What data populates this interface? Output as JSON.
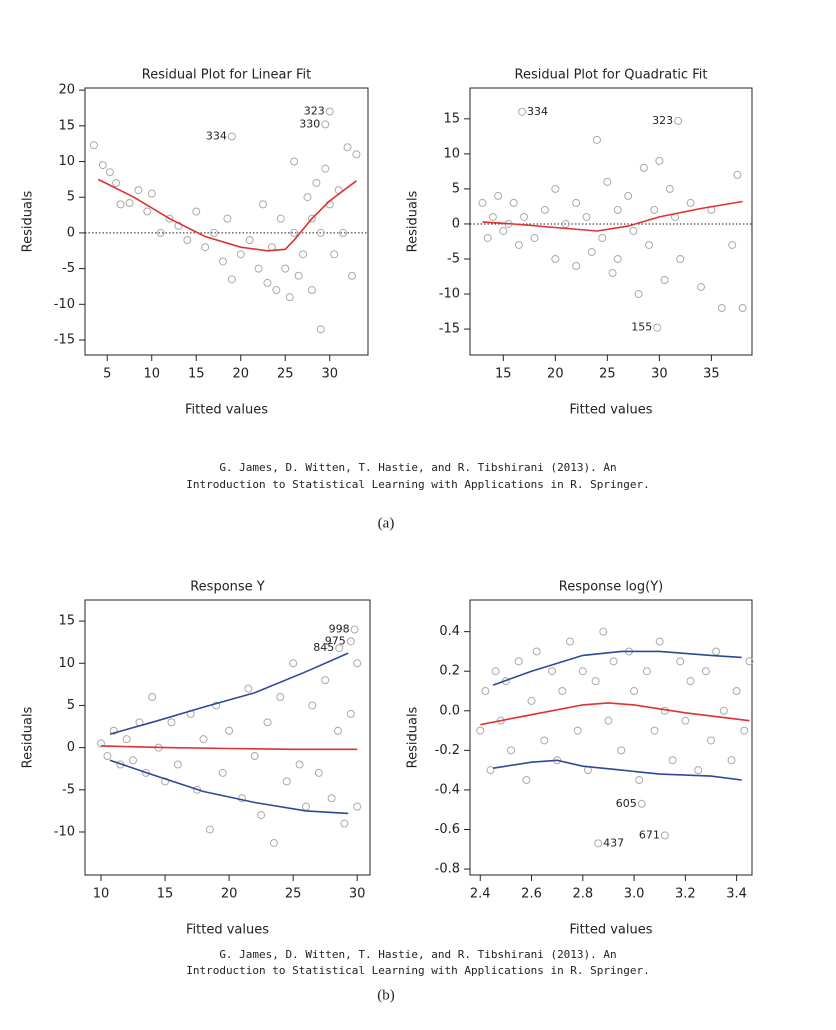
{
  "chart_data": [
    {
      "type": "scatter",
      "title": "Residual Plot for Linear Fit",
      "x_label": "Fitted values",
      "y_label": "Residuals",
      "xlim": [
        2.5,
        34.3
      ],
      "ylim": [
        -17.1,
        20.3
      ],
      "xticks": [
        5,
        10,
        15,
        20,
        25,
        30
      ],
      "yticks": [
        -15,
        -10,
        -5,
        0,
        5,
        10,
        15,
        20
      ],
      "hline": 0,
      "series": [
        {
          "style": "points",
          "color": "#aaaaaa",
          "x": [
            3.5,
            4.5,
            5.3,
            6,
            6.5,
            7.5,
            8.5,
            9.5,
            10,
            11,
            12,
            13,
            14,
            15,
            16,
            17,
            18,
            18.5,
            19,
            20,
            21,
            22,
            22.5,
            23,
            23.5,
            24,
            24.5,
            25,
            25.5,
            26,
            26,
            26.5,
            27,
            27.5,
            28,
            28,
            28.5,
            29,
            29,
            29.5,
            30,
            30.5,
            31,
            31.5,
            32,
            32.5,
            33
          ],
          "values": [
            12.3,
            9.5,
            8.5,
            7,
            4,
            4.2,
            6,
            3,
            5.5,
            0,
            2,
            1,
            -1,
            3,
            -2,
            0,
            -4,
            2,
            -6.5,
            -3,
            -1,
            -5,
            4,
            -7,
            -2,
            -8,
            2,
            -5,
            -9,
            0,
            10,
            -6,
            -3,
            5,
            -8,
            2,
            7,
            -13.5,
            0,
            9,
            4,
            -3,
            6,
            0,
            12,
            -6,
            11
          ]
        },
        {
          "style": "line",
          "color": "#e03030",
          "x": [
            4,
            8,
            12,
            16,
            20,
            23,
            25,
            26,
            28,
            30,
            33
          ],
          "values": [
            7.5,
            5,
            2,
            -0.5,
            -2,
            -2.5,
            -2.3,
            -1,
            2,
            4.5,
            7.3
          ]
        }
      ],
      "annotations": [
        {
          "label": "334",
          "x": 19,
          "y": 13.5
        },
        {
          "label": "323",
          "x": 30,
          "y": 17
        },
        {
          "label": "330",
          "x": 29.5,
          "y": 15.2
        }
      ]
    },
    {
      "type": "scatter",
      "title": "Residual Plot for Quadratic Fit",
      "x_label": "Fitted values",
      "y_label": "Residuals",
      "xlim": [
        11.8,
        38.9
      ],
      "ylim": [
        -18.7,
        19.4
      ],
      "xticks": [
        15,
        20,
        25,
        30,
        35
      ],
      "yticks": [
        -15,
        -10,
        -5,
        0,
        5,
        10,
        15
      ],
      "hline": 0,
      "series": [
        {
          "style": "points",
          "color": "#aaaaaa",
          "x": [
            13,
            13.5,
            14,
            14.5,
            15,
            15.5,
            16,
            16.5,
            17,
            18,
            19,
            20,
            20,
            21,
            22,
            22,
            23,
            23.5,
            24,
            24.5,
            25,
            25.5,
            26,
            26,
            27,
            27.5,
            28,
            28.5,
            29,
            29.5,
            30,
            30.5,
            31,
            31.5,
            32,
            33,
            34,
            35,
            36,
            37,
            37.5,
            38
          ],
          "values": [
            3,
            -2,
            1,
            4,
            -1,
            0,
            3,
            -3,
            1,
            -2,
            2,
            5,
            -5,
            0,
            3,
            -6,
            1,
            -4,
            12,
            -2,
            6,
            -7,
            2,
            -5,
            4,
            -1,
            -10,
            8,
            -3,
            2,
            9,
            -8,
            5,
            1,
            -5,
            3,
            -9,
            2,
            -12,
            -3,
            7,
            -12
          ]
        },
        {
          "style": "line",
          "color": "#e03030",
          "x": [
            13,
            16,
            20,
            24,
            27,
            30,
            34,
            38
          ],
          "values": [
            0.3,
            0,
            -0.5,
            -1,
            -0.3,
            1,
            2.2,
            3.2
          ]
        }
      ],
      "annotations": [
        {
          "label": "334",
          "x": 16.8,
          "y": 16
        },
        {
          "label": "323",
          "x": 31.8,
          "y": 14.7
        },
        {
          "label": "155",
          "x": 29.8,
          "y": -14.8
        }
      ]
    },
    {
      "type": "scatter",
      "title": "Response Y",
      "x_label": "Fitted values",
      "y_label": "Residuals",
      "xlim": [
        8.75,
        31
      ],
      "ylim": [
        -15.1,
        17.5
      ],
      "xticks": [
        10,
        15,
        20,
        25,
        30
      ],
      "yticks": [
        -10,
        -5,
        0,
        5,
        10,
        15
      ],
      "series": [
        {
          "style": "points",
          "color": "#aaaaaa",
          "x": [
            10,
            10.5,
            11,
            11.5,
            12,
            12.5,
            13,
            13.5,
            14,
            14.5,
            15,
            15.5,
            16,
            17,
            17.5,
            18,
            18.5,
            19,
            19.5,
            20,
            21,
            21.5,
            22,
            22.5,
            23,
            23.5,
            24,
            24.5,
            25,
            25.5,
            26,
            26.5,
            27,
            27.5,
            28,
            28.5,
            29,
            29.5,
            30,
            30
          ],
          "values": [
            0.5,
            -1,
            2,
            -2,
            1,
            -1.5,
            3,
            -3,
            6,
            0,
            -4,
            3,
            -2,
            4,
            -5,
            1,
            -9.7,
            5,
            -3,
            2,
            -6,
            7,
            -1,
            -8,
            3,
            -11.3,
            6,
            -4,
            10,
            -2,
            -7,
            5,
            -3,
            8,
            -6,
            2,
            -9,
            4,
            -7,
            10
          ]
        },
        {
          "style": "line",
          "color": "#e03030",
          "x": [
            10,
            15,
            20,
            25,
            30
          ],
          "values": [
            0.2,
            0,
            -0.1,
            -0.2,
            -0.2
          ]
        },
        {
          "style": "line",
          "color": "#2a4a9a",
          "x": [
            10.7,
            14,
            18,
            22,
            26,
            29.3
          ],
          "values": [
            1.6,
            3,
            4.8,
            6.5,
            9,
            11.2
          ]
        },
        {
          "style": "line",
          "color": "#2a4a9a",
          "x": [
            10.7,
            14,
            18,
            22,
            26,
            29.3
          ],
          "values": [
            -1.5,
            -3.2,
            -5.2,
            -6.5,
            -7.5,
            -7.8
          ]
        }
      ],
      "annotations": [
        {
          "label": "998",
          "x": 29.8,
          "y": 14
        },
        {
          "label": "975",
          "x": 29.5,
          "y": 12.6
        },
        {
          "label": "845",
          "x": 28.6,
          "y": 11.8
        }
      ]
    },
    {
      "type": "scatter",
      "title": "Response log(Y)",
      "x_label": "Fitted values",
      "y_label": "Residuals",
      "xlim": [
        2.36,
        3.46
      ],
      "ylim": [
        -0.83,
        0.56
      ],
      "xticks": [
        2.4,
        2.6,
        2.8,
        {
          "value": 3,
          "label": "3.0"
        },
        3.2,
        3.4
      ],
      "yticks": [
        -0.8,
        -0.6,
        -0.4,
        -0.2,
        {
          "value": 0,
          "label": "0.0"
        },
        0.2,
        0.4
      ],
      "series": [
        {
          "style": "points",
          "color": "#aaaaaa",
          "x": [
            2.4,
            2.42,
            2.44,
            2.46,
            2.48,
            2.5,
            2.52,
            2.55,
            2.58,
            2.6,
            2.62,
            2.65,
            2.68,
            2.7,
            2.72,
            2.75,
            2.78,
            2.8,
            2.82,
            2.85,
            2.88,
            2.9,
            2.92,
            2.95,
            2.98,
            3.0,
            3.02,
            3.05,
            3.08,
            3.1,
            3.12,
            3.15,
            3.18,
            3.2,
            3.22,
            3.25,
            3.28,
            3.3,
            3.32,
            3.35,
            3.38,
            3.4,
            3.43,
            3.45
          ],
          "values": [
            -0.1,
            0.1,
            -0.3,
            0.2,
            -0.05,
            0.15,
            -0.2,
            0.25,
            -0.35,
            0.05,
            0.3,
            -0.15,
            0.2,
            -0.25,
            0.1,
            0.35,
            -0.1,
            0.2,
            -0.3,
            0.15,
            0.4,
            -0.05,
            0.25,
            -0.2,
            0.3,
            0.1,
            -0.35,
            0.2,
            -0.1,
            0.35,
            0,
            -0.25,
            0.25,
            -0.05,
            0.15,
            -0.3,
            0.2,
            -0.15,
            0.3,
            0,
            -0.25,
            0.1,
            -0.1,
            0.25
          ]
        },
        {
          "style": "line",
          "color": "#e03030",
          "x": [
            2.4,
            2.6,
            2.8,
            2.9,
            3.0,
            3.2,
            3.45
          ],
          "values": [
            -0.07,
            -0.02,
            0.03,
            0.04,
            0.03,
            -0.01,
            -0.05
          ]
        },
        {
          "style": "line",
          "color": "#2a4a9a",
          "x": [
            2.45,
            2.6,
            2.8,
            2.95,
            3.1,
            3.3,
            3.42
          ],
          "values": [
            0.13,
            0.2,
            0.28,
            0.3,
            0.3,
            0.28,
            0.27
          ]
        },
        {
          "style": "line",
          "color": "#2a4a9a",
          "x": [
            2.45,
            2.6,
            2.7,
            2.8,
            2.95,
            3.1,
            3.3,
            3.42
          ],
          "values": [
            -0.29,
            -0.26,
            -0.25,
            -0.28,
            -0.3,
            -0.32,
            -0.33,
            -0.35
          ]
        }
      ],
      "annotations": [
        {
          "label": "605",
          "x": 3.03,
          "y": -0.47
        },
        {
          "label": "437",
          "x": 2.86,
          "y": -0.67
        },
        {
          "label": "671",
          "x": 3.12,
          "y": -0.63
        }
      ]
    }
  ],
  "figures": [
    {
      "caption": [
        "G. James, D. Witten, T. Hastie, and R. Tibshirani (2013). An",
        "Introduction to Statistical Learning with Applications in R. Springer."
      ],
      "label": "(a)"
    },
    {
      "caption": [
        "G. James, D. Witten, T. Hastie, and R. Tibshirani (2013). An",
        "Introduction to Statistical Learning with Applications in R. Springer."
      ],
      "label": "(b)"
    }
  ]
}
